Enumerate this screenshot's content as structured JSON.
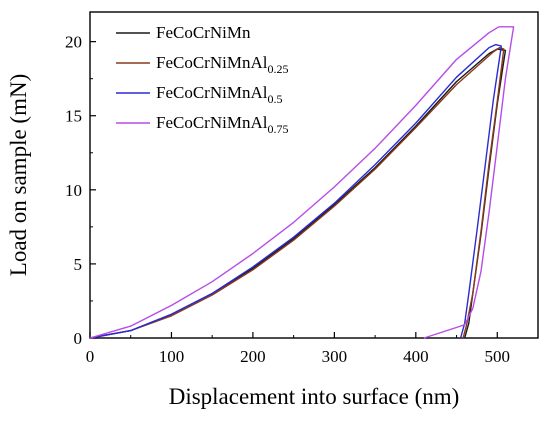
{
  "chart_data": {
    "type": "line",
    "xlabel": "Displacement into surface (nm)",
    "ylabel": "Load on sample (mN)",
    "xlim": [
      0,
      550
    ],
    "ylim": [
      0,
      22
    ],
    "xticks": [
      "0",
      "100",
      "200",
      "300",
      "400",
      "500"
    ],
    "yticks": [
      "0",
      "5",
      "10",
      "15",
      "20"
    ],
    "grid": false,
    "legend_position": "top-left",
    "series": [
      {
        "name": "FeCoCrNiMn",
        "name_base": "FeCoCrNiMn",
        "name_sub": "",
        "color": "#1a1a1a",
        "x": [
          0,
          50,
          100,
          150,
          200,
          250,
          300,
          350,
          400,
          450,
          490,
          500,
          510,
          510,
          500,
          490,
          480,
          470,
          465,
          460
        ],
        "y": [
          0,
          0.5,
          1.6,
          3.0,
          4.7,
          6.7,
          9.0,
          11.5,
          14.3,
          17.3,
          19.2,
          19.5,
          19.4,
          19.4,
          15.8,
          11.5,
          7.0,
          3.0,
          1.0,
          0
        ]
      },
      {
        "name": "FeCoCrNiMnAl0.25",
        "name_base": "FeCoCrNiMnAl",
        "name_sub": "0.25",
        "color": "#8b3a1a",
        "x": [
          0,
          50,
          100,
          150,
          200,
          250,
          300,
          350,
          400,
          450,
          495,
          503,
          508,
          508,
          500,
          490,
          480,
          470,
          462,
          458
        ],
        "y": [
          0,
          0.5,
          1.5,
          2.9,
          4.6,
          6.6,
          8.9,
          11.4,
          14.2,
          17.1,
          19.3,
          19.6,
          19.5,
          19.5,
          16.0,
          11.8,
          7.2,
          3.0,
          0.8,
          0
        ]
      },
      {
        "name": "FeCoCrNiMnAl0.5",
        "name_base": "FeCoCrNiMnAl",
        "name_sub": "0.5",
        "color": "#2b2bd4",
        "x": [
          0,
          50,
          100,
          150,
          200,
          250,
          300,
          350,
          400,
          450,
          490,
          498,
          505,
          505,
          495,
          485,
          475,
          465,
          460,
          455
        ],
        "y": [
          0,
          0.5,
          1.6,
          3.0,
          4.8,
          6.8,
          9.1,
          11.7,
          14.5,
          17.6,
          19.6,
          19.8,
          19.7,
          19.7,
          16.0,
          11.6,
          7.2,
          3.0,
          1.0,
          0
        ]
      },
      {
        "name": "FeCoCrNiMnAl0.75",
        "name_base": "FeCoCrNiMnAl",
        "name_sub": "0.75",
        "color": "#b84ce8",
        "x": [
          0,
          50,
          100,
          150,
          200,
          250,
          300,
          350,
          400,
          450,
          490,
          502,
          520,
          520,
          510,
          500,
          490,
          480,
          470,
          460,
          455,
          410
        ],
        "y": [
          0,
          0.8,
          2.2,
          3.8,
          5.7,
          7.8,
          10.2,
          12.8,
          15.7,
          18.8,
          20.6,
          21.0,
          21.0,
          21.0,
          17.5,
          13.0,
          8.5,
          4.5,
          2.0,
          0.9,
          0.8,
          0
        ]
      }
    ]
  }
}
